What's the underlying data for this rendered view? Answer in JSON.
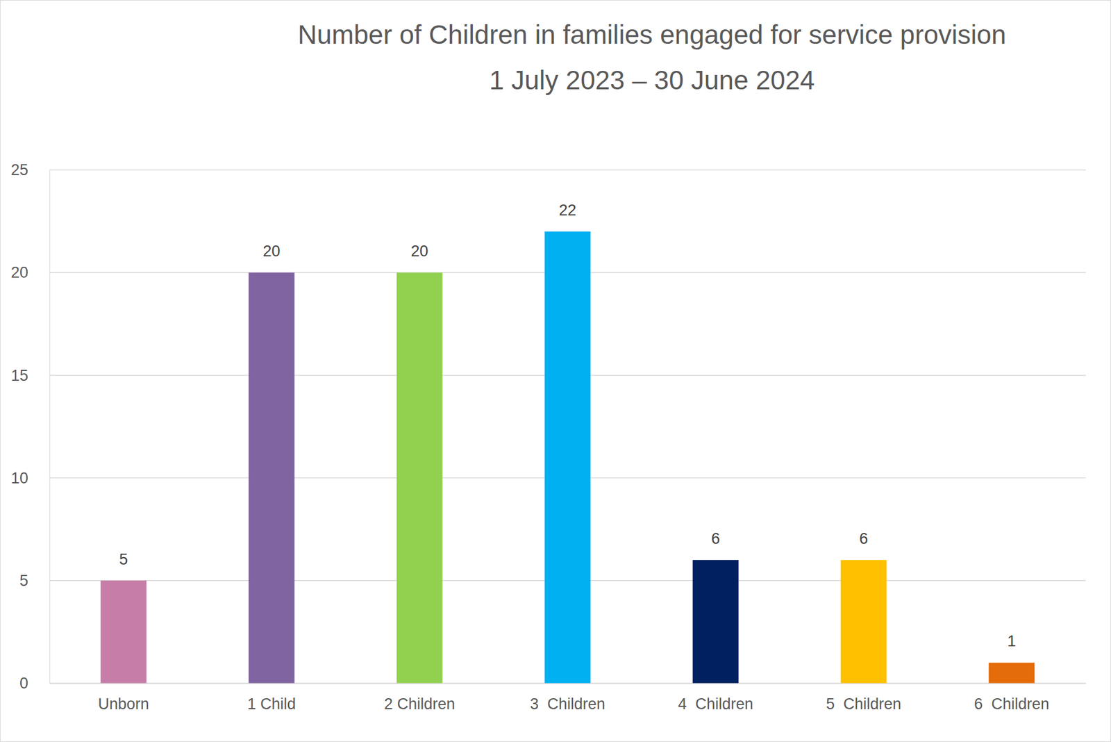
{
  "chart_data": {
    "type": "bar",
    "title": "Number of Children in families engaged for service provision",
    "subtitle": "1 July 2023 – 30 June 2024",
    "categories": [
      "Unborn",
      "1 Child",
      "2 Children",
      "3  Children",
      "4  Children",
      "5  Children",
      "6  Children"
    ],
    "values": [
      5,
      20,
      20,
      22,
      6,
      6,
      1
    ],
    "colors": [
      "#c67ea8",
      "#8064a2",
      "#92d050",
      "#00b0f0",
      "#002060",
      "#ffc000",
      "#e46c0a"
    ],
    "ylim": [
      0,
      25
    ],
    "yticks": [
      0,
      5,
      10,
      15,
      20,
      25
    ],
    "grid": true,
    "data_labels": true
  }
}
